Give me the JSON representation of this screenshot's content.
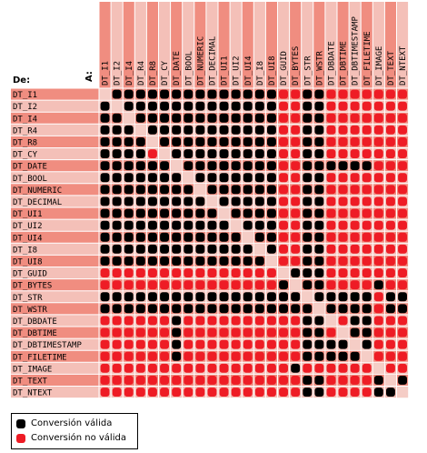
{
  "labels": {
    "from": "De:",
    "to": "A:"
  },
  "types": [
    "DT_I1",
    "DT_I2",
    "DT_I4",
    "DT_R4",
    "DT_R8",
    "DT_CY",
    "DT_DATE",
    "DT_BOOL",
    "DT_NUMERIC",
    "DT_DECIMAL",
    "DT_UI1",
    "DT_UI2",
    "DT_UI4",
    "DT_I8",
    "DT_UI8",
    "DT_GUID",
    "DT_BYTES",
    "DT_STR",
    "DT_WSTR",
    "DT_DBDATE",
    "DT_DBTIME",
    "DT_DBTIMESTAMP",
    "DT_FILETIME",
    "DT_IMAGE",
    "DT_TEXT",
    "DT_NTEXT"
  ],
  "row_types": [
    "DT_I1",
    "DT_I2",
    "DT_I4",
    "DT_R4",
    "DT_R8",
    "DT_CY",
    "DT_DATE",
    "DT_BOOL",
    "DT_NUMERIC",
    "DT_DECIMAL",
    "DT_UI1",
    "DT_UI2",
    "DT_UI4",
    "DT_I8",
    "DT_UI8",
    "DT_GUID",
    "DT_BYTES",
    "DT_STR",
    "DT_WSTR",
    "DT_DBDATE",
    "DT_DBTIME",
    "DT_DBTIMESTAMP",
    "DT_FILETIME",
    "DT_IMAGE",
    "DT_TEXT",
    "DT_NTEXT"
  ],
  "matrix": [
    "-BBBBBBBBBBBBBBRRBBRRRRRRR",
    "B-BBBBBBBBBBBBBRRBBRRRRRRR",
    "BB-BBBBBBBBBBBBRRBBRRRRRRR",
    "BBB-BBBBBBBBBBBRRBBRRRRRRR",
    "BBBB-BBBBBBBBBBRRBBRRRRRRR",
    "BBBBR-BBBBBBBBBRRBBRRRRRRR",
    "BBBBBB-BBBBBBBBRRBBBBBBRRR",
    "BBBBBBB-BBBBBBBRRBBRRRRRRR",
    "BBBBBBBB-BBBBBBRRBBRRRRRRR",
    "BBBBBBBBB-BBBBBRRBBRRRRRRR",
    "BBBBBBBBBB-BBBBRRBBRRRRRRR",
    "BBBBBBBBBBB-BBBRRBBRRRRRRR",
    "BBBBBBBBBBBB-BBRRBBRRRRRRR",
    "BBBBBBBBBBBBB-BRRBBRRRRRRR",
    "BBBBBBBBBBBBBB-RRBBRRRRRRR",
    "RRRRRRRRRRRRRRR-BBBRRRRRRR",
    "RRRRRRRRRRRRRRRB-BBRRRRBRR",
    "BBBBBBBBBBBBBBBBB-BBBBBRBB",
    "BBBBBBBBBBBBBBBBBB-BBBBRBB",
    "RRRRRRBRRRRRRRRRRBB-RBBRRR",
    "RRRRRRBRRRRRRRRRRBBR-BBRRR",
    "RRRRRRBRRRRRRRRRRBBBB-BRRR",
    "RRRRRRBRRRRRRRRRRBBBBB-RRR",
    "RRRRRRRRRRRRRRRRBRRRRRR-RR",
    "RRRRRRRRRRRRRRRRRBBRRRRB-B",
    "RRRRRRRRRRRRRRRRRBBRRRRBB-"
  ],
  "legend": {
    "valid": "Conversión válida",
    "invalid": "Conversión no válida"
  },
  "colors": {
    "valid": "#000000",
    "invalid": "#ee1c25",
    "row_odd": "#f08d80",
    "row_even": "#f4c0b8",
    "diagonal": "#f5cdc6",
    "grid_line": "#ffffff"
  }
}
